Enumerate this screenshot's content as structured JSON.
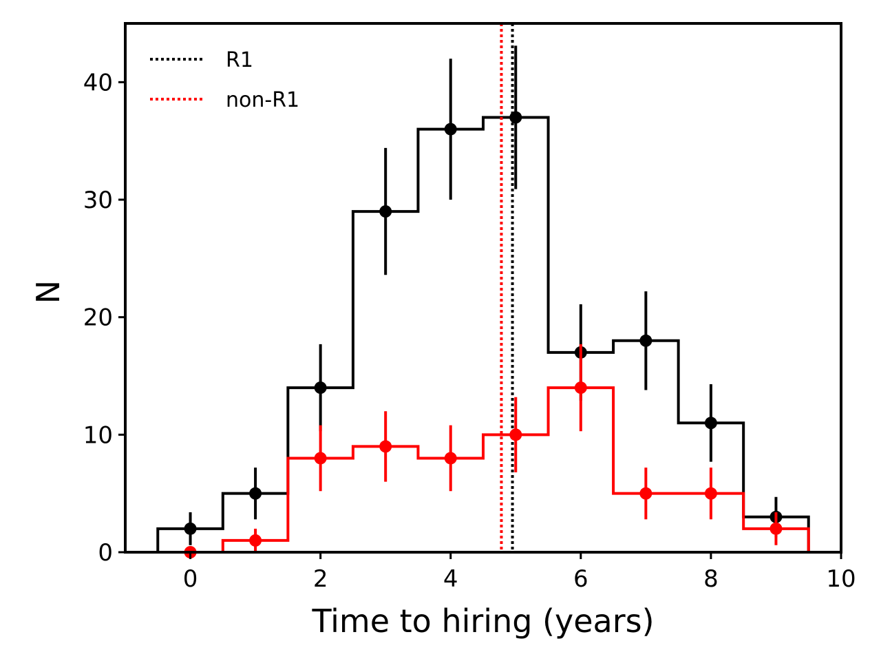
{
  "chart_data": {
    "type": "step-histogram",
    "xlabel": "Time to hiring (years)",
    "ylabel": "N",
    "xlim": [
      -1,
      10
    ],
    "ylim": [
      0,
      45
    ],
    "xticks": [
      0,
      2,
      4,
      6,
      8,
      10
    ],
    "yticks": [
      0,
      10,
      20,
      30,
      40
    ],
    "xtick_labels": [
      "0",
      "2",
      "4",
      "6",
      "8",
      "10"
    ],
    "ytick_labels": [
      "0",
      "10",
      "20",
      "30",
      "40"
    ],
    "legend_position": "top-left",
    "x": [
      0,
      1,
      2,
      3,
      4,
      5,
      6,
      7,
      8,
      9
    ],
    "series": [
      {
        "name": "R1",
        "color": "#000000",
        "values": [
          2,
          5,
          14,
          29,
          36,
          37,
          17,
          18,
          11,
          3
        ],
        "errors": [
          1.4,
          2.2,
          3.7,
          5.4,
          6.0,
          6.1,
          4.1,
          4.2,
          3.3,
          1.7
        ],
        "median": 4.95
      },
      {
        "name": "non-R1",
        "color": "#ff0000",
        "values": [
          0,
          1,
          8,
          9,
          8,
          10,
          14,
          5,
          5,
          2
        ],
        "errors": [
          0,
          1.0,
          2.8,
          3.0,
          2.8,
          3.2,
          3.7,
          2.2,
          2.2,
          1.4
        ],
        "median": 4.78
      }
    ]
  }
}
